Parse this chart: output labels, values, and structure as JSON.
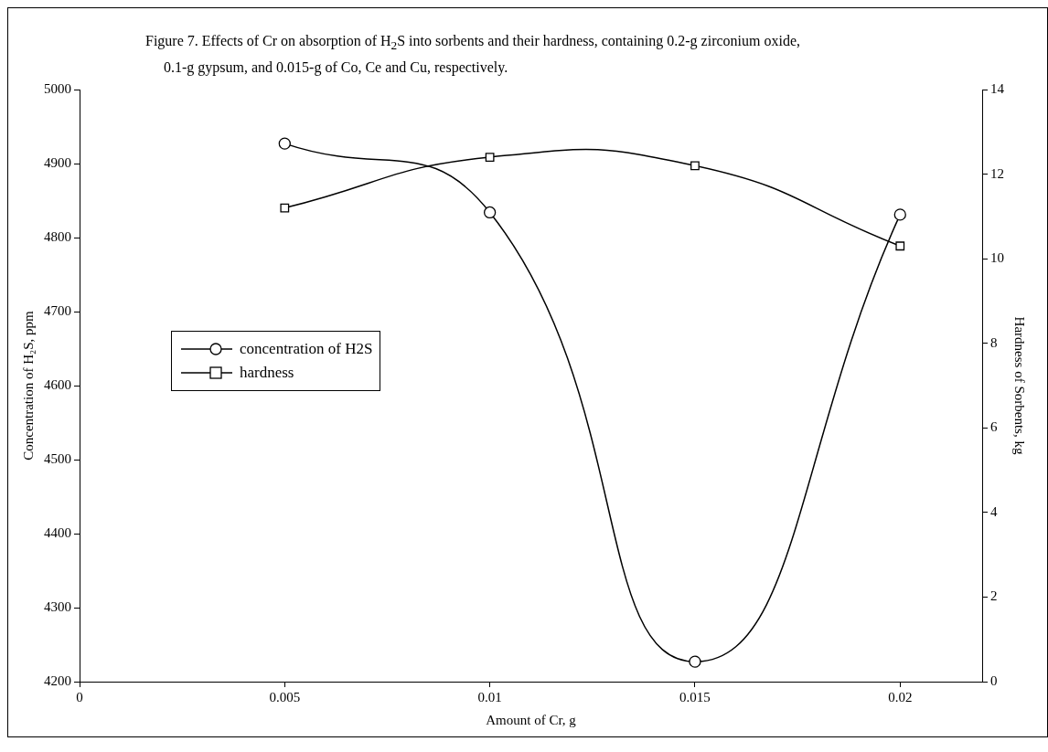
{
  "chart_data": {
    "type": "line",
    "title": "Figure 7. Effects of Cr on absorption of H$_{2}$S into sorbents and their hardness, containing 0.2-g zirconium oxide, 0.1-g gypsum, and 0.015-g of Co,  Ce and Cu, respectively.",
    "xlabel": "Amount of Cr, g",
    "ylabel": "Concentration of H₂S, ppm",
    "y2label": "Hardness of Sorbents, kg",
    "x": [
      0.005,
      0.01,
      0.015,
      0.02
    ],
    "series": [
      {
        "name": "concentration of H2S",
        "color": "#000000",
        "marker": "circle",
        "values": [
          4927,
          4834,
          4227,
          4831
        ]
      },
      {
        "name": "hardness",
        "color": "#000000",
        "marker": "square",
        "axis": "y2",
        "values": [
          11.2,
          12.4,
          12.2,
          10.3
        ]
      }
    ],
    "xlim": [
      0,
      0.022
    ],
    "xticks": [
      0,
      0.005,
      0.01,
      0.015,
      0.02
    ],
    "ylim": [
      4200,
      5000
    ],
    "yticks": [
      4200,
      4300,
      4400,
      4500,
      4600,
      4700,
      4800,
      4900,
      5000
    ],
    "y2lim": [
      0,
      14
    ],
    "y2ticks": [
      0,
      2,
      4,
      6,
      8,
      10,
      12,
      14
    ],
    "grid": false,
    "legend": "left"
  }
}
